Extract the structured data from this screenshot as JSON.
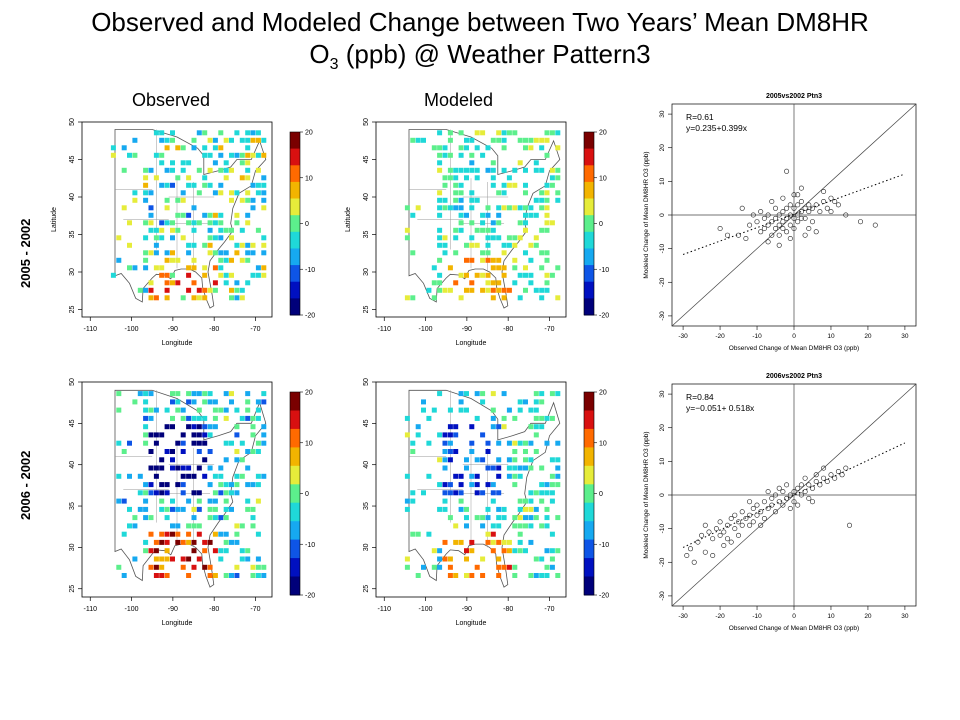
{
  "title": {
    "line1": "Observed and Modeled Change between Two Years’ Mean DM8HR",
    "line2_pre": "O",
    "line2_sub": "3",
    "line2_post": " (ppb) @ Weather Pattern3"
  },
  "columns": {
    "observed": "Observed",
    "modeled": "Modeled"
  },
  "rows": [
    {
      "label": "2005 - 2002"
    },
    {
      "label": "2006 - 2002"
    }
  ],
  "map_axes": {
    "xlabel": "Longitude",
    "ylabel": "Latitude",
    "xticks": [
      -110,
      -100,
      -90,
      -80,
      -70
    ],
    "yticks": [
      25,
      30,
      35,
      40,
      45,
      50
    ]
  },
  "colorbar": {
    "ticks": [
      20,
      10,
      0,
      -10,
      -20
    ],
    "colors": [
      "#7a0000",
      "#d81010",
      "#ff6a00",
      "#f2b400",
      "#e6ec3a",
      "#5cef8c",
      "#1fd8d8",
      "#16a9f0",
      "#0e55e6",
      "#0010c0",
      "#00007a"
    ]
  },
  "colors": {
    "map_outline": "#555555",
    "scatter_point": "#222222"
  },
  "chart_data": [
    {
      "type": "scatter",
      "title": "2005vs2002 Ptn3",
      "xlabel": "Observed Change of Mean DM8HR O3 (ppb)",
      "ylabel": "Modeled Change of Mean DM8HR O3 (ppb)",
      "xlim": [
        -33,
        33
      ],
      "ylim": [
        -33,
        33
      ],
      "xticks": [
        -30,
        -20,
        -10,
        0,
        10,
        20,
        30
      ],
      "yticks": [
        -30,
        -20,
        -10,
        0,
        10,
        20,
        30
      ],
      "annotations": [
        "R=0.61",
        "y=0.235+0.399x"
      ],
      "fit": {
        "intercept": 0.235,
        "slope": 0.399
      },
      "points": [
        [
          -12,
          -3
        ],
        [
          -10,
          -2
        ],
        [
          -9,
          -5
        ],
        [
          -8,
          -1
        ],
        [
          -8,
          -4
        ],
        [
          -7,
          -3
        ],
        [
          -7,
          0
        ],
        [
          -6,
          -2
        ],
        [
          -6,
          -6
        ],
        [
          -5,
          -1
        ],
        [
          -5,
          -4
        ],
        [
          -5,
          2
        ],
        [
          -4,
          -3
        ],
        [
          -4,
          0
        ],
        [
          -4,
          -6
        ],
        [
          -3,
          -2
        ],
        [
          -3,
          1
        ],
        [
          -3,
          -4
        ],
        [
          -2,
          -1
        ],
        [
          -2,
          2
        ],
        [
          -2,
          -5
        ],
        [
          -1,
          0
        ],
        [
          -1,
          -3
        ],
        [
          -1,
          3
        ],
        [
          0,
          -1
        ],
        [
          0,
          2
        ],
        [
          0,
          -4
        ],
        [
          1,
          0
        ],
        [
          1,
          3
        ],
        [
          1,
          -2
        ],
        [
          2,
          1
        ],
        [
          2,
          -1
        ],
        [
          2,
          4
        ],
        [
          3,
          2
        ],
        [
          3,
          -1
        ],
        [
          4,
          1
        ],
        [
          4,
          3
        ],
        [
          5,
          2
        ],
        [
          5,
          -2
        ],
        [
          6,
          3
        ],
        [
          7,
          1
        ],
        [
          8,
          4
        ],
        [
          9,
          2
        ],
        [
          10,
          1
        ],
        [
          12,
          3
        ],
        [
          -15,
          -6
        ],
        [
          -13,
          -7
        ],
        [
          -11,
          0
        ],
        [
          -9,
          1
        ],
        [
          -6,
          4
        ],
        [
          -3,
          5
        ],
        [
          0,
          6
        ],
        [
          2,
          8
        ],
        [
          -2,
          13
        ],
        [
          3,
          -6
        ],
        [
          6,
          -5
        ],
        [
          11,
          4
        ],
        [
          14,
          0
        ],
        [
          18,
          -2
        ],
        [
          22,
          -3
        ],
        [
          -18,
          -6
        ],
        [
          -20,
          -4
        ],
        [
          -14,
          2
        ],
        [
          -7,
          -8
        ],
        [
          -4,
          -9
        ],
        [
          8,
          7
        ],
        [
          10,
          5
        ],
        [
          1,
          6
        ],
        [
          -1,
          -7
        ],
        [
          4,
          -4
        ]
      ]
    },
    {
      "type": "scatter",
      "title": "2006vs2002 Ptn3",
      "xlabel": "Observed Change of Mean DM8HR O3 (ppb)",
      "ylabel": "Modeled Change of Mean DM8HR O3 (ppb)",
      "xlim": [
        -33,
        33
      ],
      "ylim": [
        -33,
        33
      ],
      "xticks": [
        -30,
        -20,
        -10,
        0,
        10,
        20,
        30
      ],
      "yticks": [
        -30,
        -20,
        -10,
        0,
        10,
        20,
        30
      ],
      "annotations": [
        "R=0.84",
        "y=−0.051+ 0.518x"
      ],
      "fit": {
        "intercept": -0.051,
        "slope": 0.518
      },
      "points": [
        [
          -28,
          -16
        ],
        [
          -26,
          -14
        ],
        [
          -25,
          -12
        ],
        [
          -24,
          -17
        ],
        [
          -23,
          -11
        ],
        [
          -22,
          -13
        ],
        [
          -21,
          -10
        ],
        [
          -20,
          -12
        ],
        [
          -20,
          -8
        ],
        [
          -19,
          -11
        ],
        [
          -18,
          -9
        ],
        [
          -18,
          -13
        ],
        [
          -17,
          -7
        ],
        [
          -16,
          -10
        ],
        [
          -16,
          -6
        ],
        [
          -15,
          -8
        ],
        [
          -14,
          -9
        ],
        [
          -14,
          -5
        ],
        [
          -13,
          -7
        ],
        [
          -12,
          -6
        ],
        [
          -12,
          -9
        ],
        [
          -11,
          -4
        ],
        [
          -10,
          -6
        ],
        [
          -10,
          -3
        ],
        [
          -9,
          -5
        ],
        [
          -8,
          -7
        ],
        [
          -8,
          -2
        ],
        [
          -7,
          -4
        ],
        [
          -6,
          -3
        ],
        [
          -6,
          -1
        ],
        [
          -5,
          -5
        ],
        [
          -5,
          0
        ],
        [
          -4,
          -2
        ],
        [
          -3,
          -3
        ],
        [
          -3,
          1
        ],
        [
          -2,
          -1
        ],
        [
          -1,
          0
        ],
        [
          -1,
          -4
        ],
        [
          0,
          1
        ],
        [
          0,
          -2
        ],
        [
          1,
          2
        ],
        [
          2,
          0
        ],
        [
          2,
          3
        ],
        [
          3,
          1
        ],
        [
          4,
          3
        ],
        [
          4,
          -1
        ],
        [
          5,
          2
        ],
        [
          6,
          4
        ],
        [
          7,
          3
        ],
        [
          8,
          5
        ],
        [
          9,
          4
        ],
        [
          10,
          6
        ],
        [
          11,
          5
        ],
        [
          12,
          7
        ],
        [
          13,
          6
        ],
        [
          14,
          8
        ],
        [
          -27,
          -20
        ],
        [
          -24,
          -9
        ],
        [
          -22,
          -18
        ],
        [
          -19,
          -15
        ],
        [
          -15,
          -12
        ],
        [
          -12,
          -2
        ],
        [
          -9,
          -9
        ],
        [
          -7,
          1
        ],
        [
          -4,
          2
        ],
        [
          1,
          -3
        ],
        [
          3,
          5
        ],
        [
          6,
          6
        ],
        [
          8,
          8
        ],
        [
          15,
          -9
        ],
        [
          -29,
          -18
        ],
        [
          -17,
          -14
        ],
        [
          -11,
          -8
        ],
        [
          -2,
          3
        ],
        [
          5,
          -2
        ]
      ]
    }
  ]
}
